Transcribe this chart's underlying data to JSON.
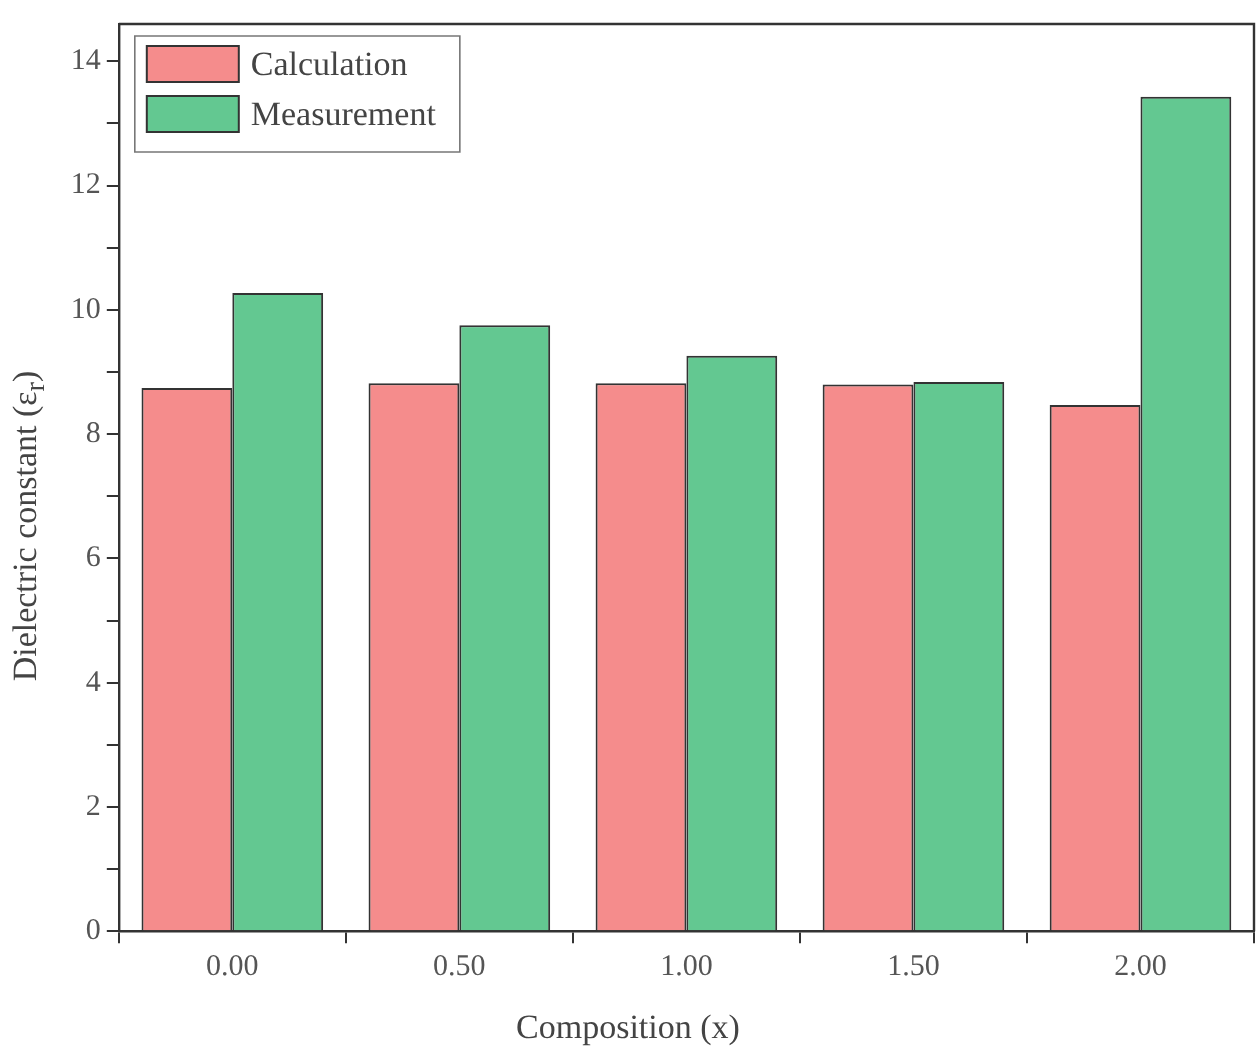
{
  "chart_data": {
    "type": "bar",
    "xlabel": "Composition (x)",
    "ylabel": "Dielectric constant (ε$_{r}$)",
    "categories": [
      "0.00",
      "0.50",
      "1.00",
      "1.50",
      "2.00"
    ],
    "series": [
      {
        "name": "Calculation",
        "color": "#f47f7f",
        "values": [
          8.74,
          8.82,
          8.82,
          8.8,
          8.47
        ]
      },
      {
        "name": "Measurement",
        "color": "#52c285",
        "values": [
          10.27,
          9.75,
          9.26,
          8.84,
          13.43
        ]
      }
    ],
    "ylim": [
      0,
      14.6
    ],
    "yticks": [
      0,
      {
        "value": 1,
        "label": null
      },
      2,
      {
        "value": 3,
        "label": null
      },
      4,
      {
        "value": 5,
        "label": null
      },
      6,
      {
        "value": 7,
        "label": null
      },
      8,
      {
        "value": 9,
        "label": null
      },
      10,
      {
        "value": 11,
        "label": null
      },
      12,
      {
        "value": 13,
        "label": null
      },
      14
    ],
    "grid": false,
    "legend": "top left"
  }
}
